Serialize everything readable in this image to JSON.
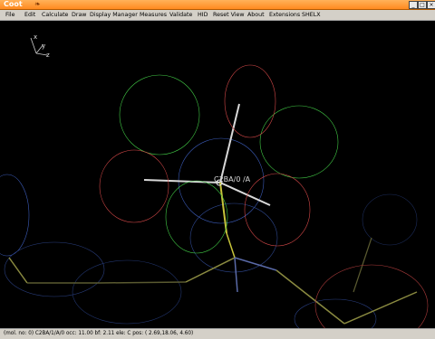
{
  "window": {
    "title": "Coot",
    "title_icon": "coot-logo-icon",
    "controls": [
      "minimize-icon",
      "maximize-icon",
      "close-icon"
    ]
  },
  "menubar": {
    "items": [
      {
        "label": "File"
      },
      {
        "label": "Edit"
      },
      {
        "label": "Calculate"
      },
      {
        "label": "Draw"
      },
      {
        "label": "Display Manager"
      },
      {
        "label": "Measures"
      },
      {
        "label": "Validate"
      },
      {
        "label": "HID"
      },
      {
        "label": "Reset View"
      },
      {
        "label": "About"
      },
      {
        "label": "Extensions"
      },
      {
        "label": "SHELX"
      }
    ]
  },
  "viewport": {
    "axes": {
      "x": "x",
      "y": "y",
      "z": "z"
    },
    "atom_label": "C2BA/0 /A",
    "colors": {
      "positive_density": "#41c845",
      "negative_density": "#d44848",
      "map_blue": "#3b5bb7",
      "bond_yellow": "#c7c43a",
      "bond_white": "#d8d8d8",
      "background": "#000000"
    }
  },
  "status": {
    "text": "(mol. no: 0) C2BA/1/A/0 occ: 11.00 bf: 2.11 ele: C pos: ( 2.69,18.06, 4.60)"
  }
}
